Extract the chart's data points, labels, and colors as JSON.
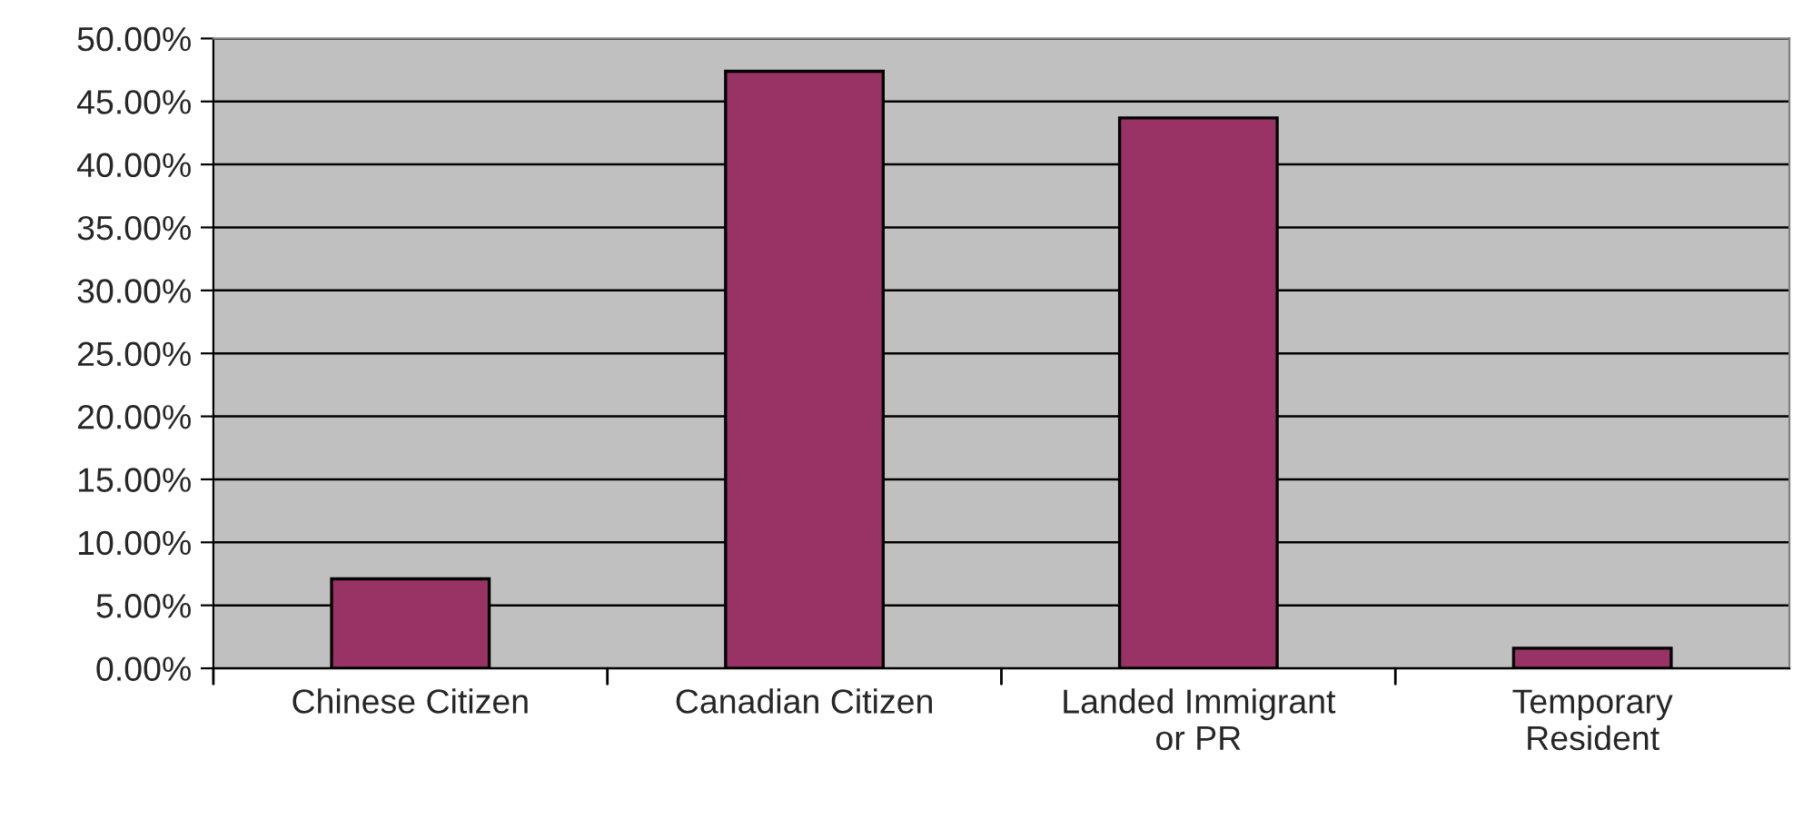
{
  "chart_data": {
    "type": "bar",
    "categories": [
      "Chinese Citizen",
      "Canadian Citizen",
      "Landed Immigrant\nor PR",
      "Temporary\nResident"
    ],
    "values": [
      7.1,
      47.4,
      43.7,
      1.6
    ],
    "color": "#993366",
    "ylim": [
      0,
      50
    ],
    "yticks": [
      {
        "value": 0,
        "label": "0.00%"
      },
      {
        "value": 5,
        "label": "5.00%"
      },
      {
        "value": 10,
        "label": "10.00%"
      },
      {
        "value": 15,
        "label": "15.00%"
      },
      {
        "value": 20,
        "label": "20.00%"
      },
      {
        "value": 25,
        "label": "25.00%"
      },
      {
        "value": 30,
        "label": "30.00%"
      },
      {
        "value": 35,
        "label": "35.00%"
      },
      {
        "value": 40,
        "label": "40.00%"
      },
      {
        "value": 45,
        "label": "45.00%"
      },
      {
        "value": 50,
        "label": "50.00%"
      }
    ],
    "grid": "y",
    "legend": false
  }
}
